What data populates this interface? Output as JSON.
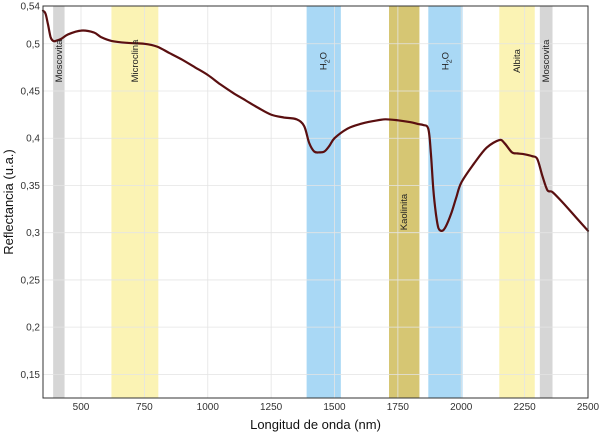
{
  "chart_data": {
    "type": "line",
    "title": "",
    "xlabel": "Longitud de onda (nm)",
    "ylabel": "Reflectancia (u.a.)",
    "xlim": [
      350,
      2500
    ],
    "ylim": [
      0.125,
      0.54
    ],
    "grid": true,
    "x_ticks": [
      {
        "value": 500,
        "label": "500"
      },
      {
        "value": 750,
        "label": "750"
      },
      {
        "value": 1000,
        "label": "1000"
      },
      {
        "value": 1250,
        "label": "1250"
      },
      {
        "value": 1500,
        "label": "1500"
      },
      {
        "value": 1750,
        "label": "1750"
      },
      {
        "value": 2000,
        "label": "2000"
      },
      {
        "value": 2250,
        "label": "2250"
      },
      {
        "value": 2500,
        "label": "2500"
      }
    ],
    "y_ticks": [
      {
        "value": 0.54,
        "label": "0,54"
      },
      {
        "value": 0.5,
        "label": "0,5"
      },
      {
        "value": 0.45,
        "label": "0,45"
      },
      {
        "value": 0.4,
        "label": "0,4"
      },
      {
        "value": 0.35,
        "label": "0,35"
      },
      {
        "value": 0.3,
        "label": "0,3"
      },
      {
        "value": 0.25,
        "label": "0,25"
      },
      {
        "value": 0.2,
        "label": "0,2"
      },
      {
        "value": 0.15,
        "label": "0,15"
      }
    ],
    "bands": [
      {
        "label": "Moscovita",
        "sub": "",
        "tail": "",
        "x_start": 390,
        "x_end": 435,
        "color": "#d6d6d6",
        "label_pos": "top"
      },
      {
        "label": "Microclina",
        "sub": "",
        "tail": "",
        "x_start": 620,
        "x_end": 805,
        "color": "#fbf3b4",
        "label_pos": "top"
      },
      {
        "label": "H",
        "sub": "2",
        "tail": "O",
        "x_start": 1390,
        "x_end": 1525,
        "color": "#a9d8f5",
        "label_pos": "top"
      },
      {
        "label": "Kaolinita",
        "sub": "",
        "tail": "",
        "x_start": 1715,
        "x_end": 1835,
        "color": "#d6c673",
        "label_pos": "middle"
      },
      {
        "label": "H",
        "sub": "2",
        "tail": "O",
        "x_start": 1870,
        "x_end": 2005,
        "color": "#a9d8f5",
        "label_pos": "top"
      },
      {
        "label": "Albita",
        "sub": "",
        "tail": "",
        "x_start": 2150,
        "x_end": 2290,
        "color": "#fbf3b4",
        "label_pos": "top"
      },
      {
        "label": "Moscovita",
        "sub": "",
        "tail": "",
        "x_start": 2310,
        "x_end": 2360,
        "color": "#d6d6d6",
        "label_pos": "top"
      }
    ],
    "series": [
      {
        "color": "#5a0f10",
        "x": [
          350,
          360,
          370,
          380,
          390,
          400,
          420,
          450,
          500,
          550,
          580,
          620,
          680,
          750,
          800,
          850,
          900,
          950,
          1000,
          1050,
          1100,
          1150,
          1200,
          1250,
          1300,
          1350,
          1380,
          1400,
          1420,
          1440,
          1460,
          1480,
          1500,
          1550,
          1600,
          1650,
          1700,
          1750,
          1800,
          1830,
          1850,
          1870,
          1880,
          1890,
          1900,
          1910,
          1925,
          1940,
          1960,
          1980,
          2000,
          2050,
          2100,
          2150,
          2170,
          2200,
          2220,
          2250,
          2280,
          2300,
          2320,
          2340,
          2360,
          2400,
          2450,
          2500
        ],
        "y": [
          0.535,
          0.532,
          0.52,
          0.507,
          0.503,
          0.503,
          0.505,
          0.51,
          0.514,
          0.512,
          0.507,
          0.503,
          0.501,
          0.5,
          0.497,
          0.49,
          0.483,
          0.475,
          0.467,
          0.457,
          0.448,
          0.44,
          0.432,
          0.425,
          0.422,
          0.42,
          0.413,
          0.395,
          0.386,
          0.385,
          0.386,
          0.392,
          0.4,
          0.41,
          0.415,
          0.418,
          0.42,
          0.419,
          0.417,
          0.415,
          0.414,
          0.41,
          0.385,
          0.345,
          0.32,
          0.305,
          0.302,
          0.307,
          0.32,
          0.337,
          0.353,
          0.373,
          0.39,
          0.398,
          0.395,
          0.385,
          0.384,
          0.383,
          0.381,
          0.378,
          0.36,
          0.345,
          0.343,
          0.332,
          0.317,
          0.302
        ]
      }
    ]
  }
}
